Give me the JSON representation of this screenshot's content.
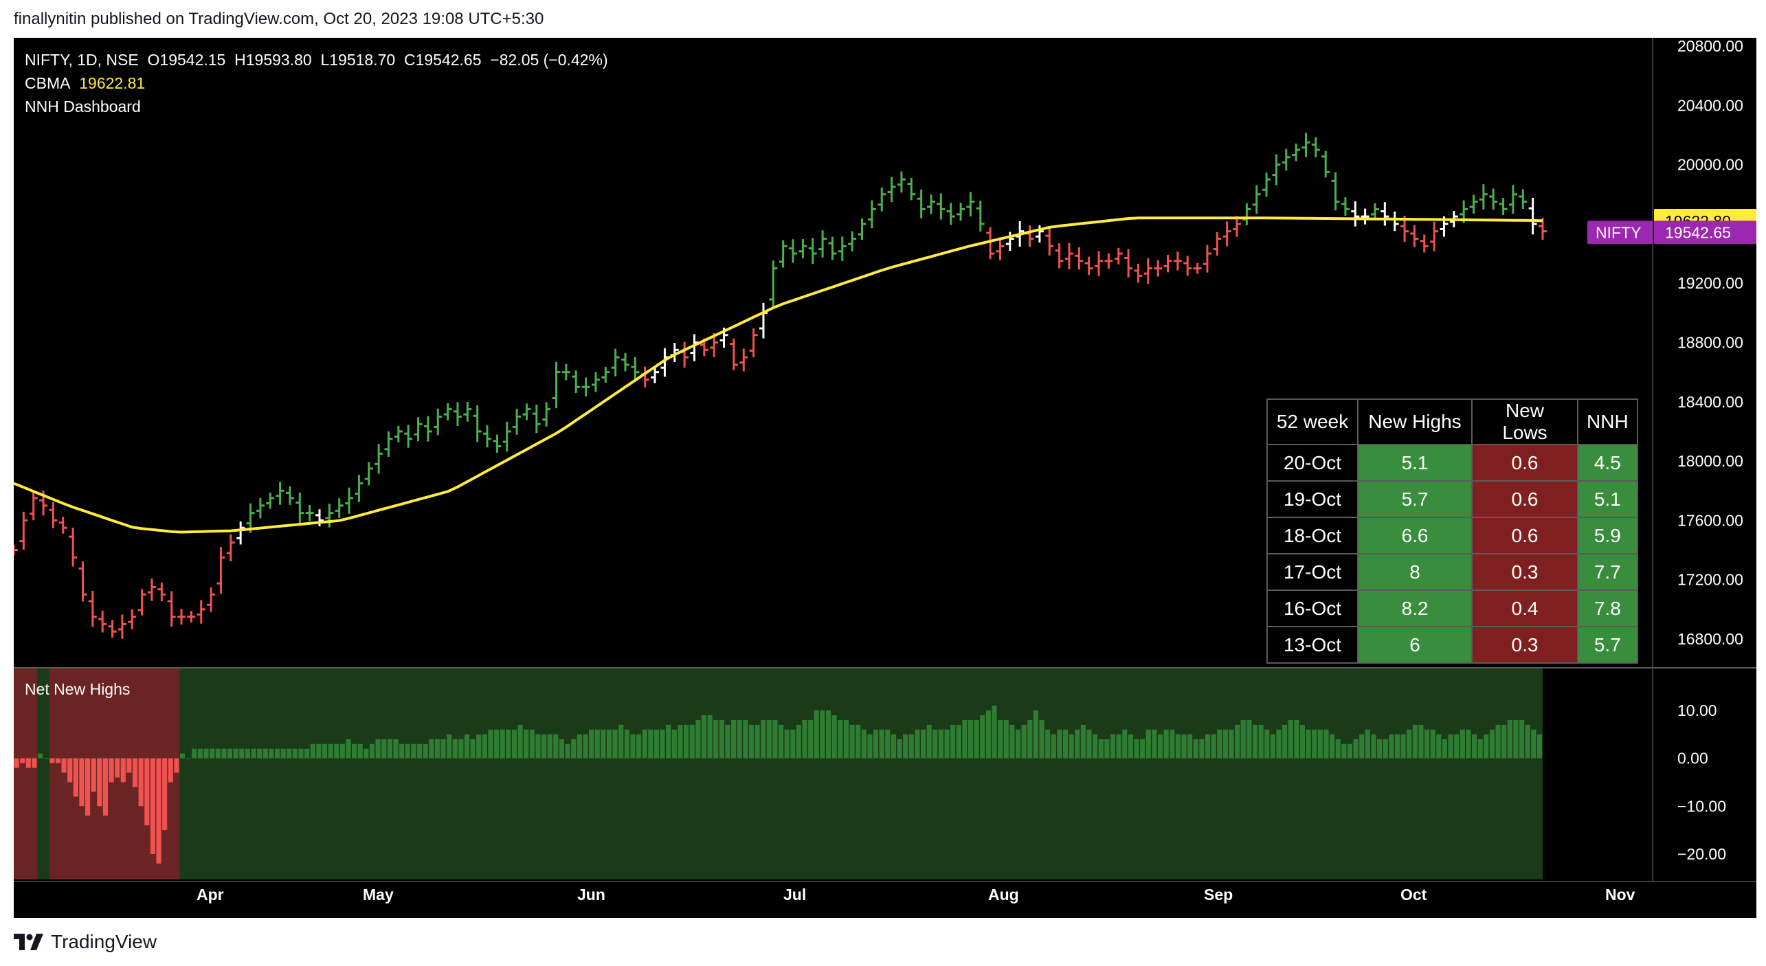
{
  "caption": "finallynitin published on TradingView.com, Oct 20, 2023 19:08 UTC+5:30",
  "footer_brand": "TradingView",
  "legend": {
    "symbol": "NIFTY, 1D, NSE",
    "open": "O19542.15",
    "high": "H19593.80",
    "low": "L19518.70",
    "close": "C19542.65",
    "change": "−82.05 (−0.42%)",
    "cbma_label": "CBMA",
    "cbma_value": "19622.81",
    "dashboard_label": "NNH Dashboard"
  },
  "indicator_title": "Net New Highs",
  "dashboard_table": {
    "headers": [
      "52 week",
      "New Highs",
      "New Lows",
      "NNH"
    ],
    "rows": [
      {
        "date": "20-Oct",
        "highs": "5.1",
        "lows": "0.6",
        "nnh": "4.5"
      },
      {
        "date": "19-Oct",
        "highs": "5.7",
        "lows": "0.6",
        "nnh": "5.1"
      },
      {
        "date": "18-Oct",
        "highs": "6.6",
        "lows": "0.6",
        "nnh": "5.9"
      },
      {
        "date": "17-Oct",
        "highs": "8",
        "lows": "0.3",
        "nnh": "7.7"
      },
      {
        "date": "16-Oct",
        "highs": "8.2",
        "lows": "0.4",
        "nnh": "7.8"
      },
      {
        "date": "13-Oct",
        "highs": "6",
        "lows": "0.3",
        "nnh": "5.7"
      }
    ]
  },
  "colors": {
    "up": "#4caf50",
    "down": "#f05350",
    "neutral": "#ffffff",
    "cbma": "#ffeb3b",
    "cbma_label_bg": "#ffeb3b",
    "nifty_label_bg": "#9c27b0",
    "bg_positive": "#1b3a17",
    "bg_negative": "#6b2424",
    "bar_positive": "#2e7d32",
    "bar_negative": "#ef5350"
  },
  "chart_data": [
    {
      "type": "ohlc",
      "symbol": "NIFTY",
      "y_ticks": [
        "20800.00",
        "20400.00",
        "20000.00",
        "19600.00",
        "19200.00",
        "18800.00",
        "18400.00",
        "18000.00",
        "17600.00",
        "17200.00",
        "16800.00"
      ],
      "ylim": [
        16600,
        20850
      ],
      "x_ticks": [
        "Apr",
        "May",
        "Jun",
        "Jul",
        "Aug",
        "Sep",
        "Oct",
        "Nov"
      ],
      "last_labels": {
        "cbma": "19622.80",
        "nifty_name": "NIFTY",
        "nifty_value": "19542.65"
      },
      "closes_approx": [
        17400,
        17600,
        17750,
        17700,
        17600,
        17550,
        17350,
        17100,
        16950,
        16900,
        16850,
        16900,
        16950,
        17100,
        17150,
        17100,
        16950,
        16950,
        16950,
        17000,
        17100,
        17350,
        17450,
        17550,
        17650,
        17700,
        17750,
        17800,
        17750,
        17650,
        17650,
        17600,
        17650,
        17700,
        17750,
        17850,
        17950,
        18050,
        18150,
        18200,
        18150,
        18250,
        18200,
        18300,
        18350,
        18300,
        18350,
        18200,
        18150,
        18100,
        18200,
        18300,
        18350,
        18250,
        18350,
        18600,
        18600,
        18500,
        18500,
        18550,
        18600,
        18700,
        18650,
        18600,
        18550,
        18600,
        18700,
        18750,
        18700,
        18800,
        18750,
        18800,
        18850,
        18650,
        18700,
        18850,
        19000,
        19300,
        19450,
        19400,
        19450,
        19400,
        19500,
        19400,
        19450,
        19500,
        19600,
        19700,
        19800,
        19850,
        19900,
        19800,
        19700,
        19750,
        19700,
        19650,
        19700,
        19750,
        19600,
        19400,
        19450,
        19500,
        19550,
        19500,
        19550,
        19450,
        19350,
        19400,
        19350,
        19300,
        19350,
        19350,
        19400,
        19300,
        19250,
        19300,
        19300,
        19350,
        19350,
        19300,
        19300,
        19400,
        19500,
        19550,
        19600,
        19700,
        19800,
        19900,
        20000,
        20050,
        20100,
        20150,
        20100,
        19950,
        19750,
        19700,
        19650,
        19650,
        19700,
        19650,
        19600,
        19550,
        19500,
        19450,
        19550,
        19600,
        19650,
        19700,
        19750,
        19800,
        19750,
        19700,
        19800,
        19750,
        19600,
        19550
      ],
      "cbma_points": [
        [
          0,
          17850
        ],
        [
          10,
          17700
        ],
        [
          22,
          17550
        ],
        [
          30,
          17520
        ],
        [
          40,
          17530
        ],
        [
          60,
          17600
        ],
        [
          80,
          17800
        ],
        [
          100,
          18200
        ],
        [
          120,
          18700
        ],
        [
          140,
          19050
        ],
        [
          160,
          19300
        ],
        [
          175,
          19450
        ],
        [
          190,
          19580
        ],
        [
          205,
          19640
        ],
        [
          230,
          19640
        ],
        [
          260,
          19630
        ],
        [
          280,
          19622
        ]
      ]
    },
    {
      "type": "bar",
      "title": "Net New Highs",
      "y_ticks": [
        "10.00",
        "0.00",
        "−10.00",
        "−20.00"
      ],
      "ylim": [
        -24,
        18
      ],
      "values": [
        -2,
        -1,
        -2,
        -2,
        1,
        0,
        -1,
        -1,
        -3,
        -5,
        -8,
        -10,
        -12,
        -7,
        -10,
        -12,
        -5,
        -4,
        -5,
        -3,
        -6,
        -10,
        -14,
        -20,
        -22,
        -15,
        -5,
        -3,
        1,
        0,
        2,
        2,
        2,
        2,
        2,
        2,
        2,
        2,
        2,
        2,
        2,
        2,
        2,
        2,
        2,
        2,
        2,
        2,
        2,
        2,
        3,
        3,
        3,
        3,
        3,
        3,
        4,
        3,
        3,
        2,
        3,
        4,
        4,
        4,
        4,
        3,
        3,
        3,
        3,
        3,
        4,
        4,
        4,
        5,
        4,
        4,
        5,
        4,
        5,
        5,
        6,
        6,
        6,
        6,
        6,
        7,
        6,
        6,
        5,
        5,
        5,
        5,
        4,
        3,
        4,
        5,
        5,
        6,
        6,
        6,
        6,
        6,
        7,
        6,
        5,
        5,
        6,
        6,
        6,
        6,
        7,
        6,
        7,
        7,
        7,
        8,
        9,
        9,
        8,
        8,
        7,
        8,
        8,
        8,
        7,
        7,
        8,
        8,
        8,
        7,
        6,
        6,
        7,
        8,
        8,
        10,
        10,
        10,
        9,
        8,
        8,
        7,
        7,
        6,
        5,
        6,
        6,
        6,
        5,
        4,
        5,
        5,
        6,
        6,
        7,
        6,
        6,
        6,
        7,
        7,
        8,
        8,
        8,
        9,
        10,
        11,
        8,
        8,
        7,
        6,
        7,
        8,
        10,
        8,
        6,
        5,
        6,
        6,
        5,
        6,
        7,
        6,
        5,
        4,
        4,
        5,
        5,
        6,
        5,
        4,
        4,
        6,
        6,
        5,
        6,
        6,
        5,
        5,
        5,
        4,
        4,
        5,
        5,
        6,
        6,
        6,
        7,
        8,
        8,
        7,
        7,
        6,
        5,
        6,
        7,
        8,
        8,
        7,
        6,
        6,
        6,
        6,
        5,
        4,
        3,
        3,
        4,
        5,
        6,
        5,
        4,
        4,
        5,
        5,
        5,
        6,
        7,
        7,
        6,
        6,
        5,
        4,
        5,
        5,
        6,
        6,
        5,
        4,
        5,
        6,
        7,
        7,
        8,
        8,
        8,
        7,
        6,
        5
      ]
    }
  ]
}
